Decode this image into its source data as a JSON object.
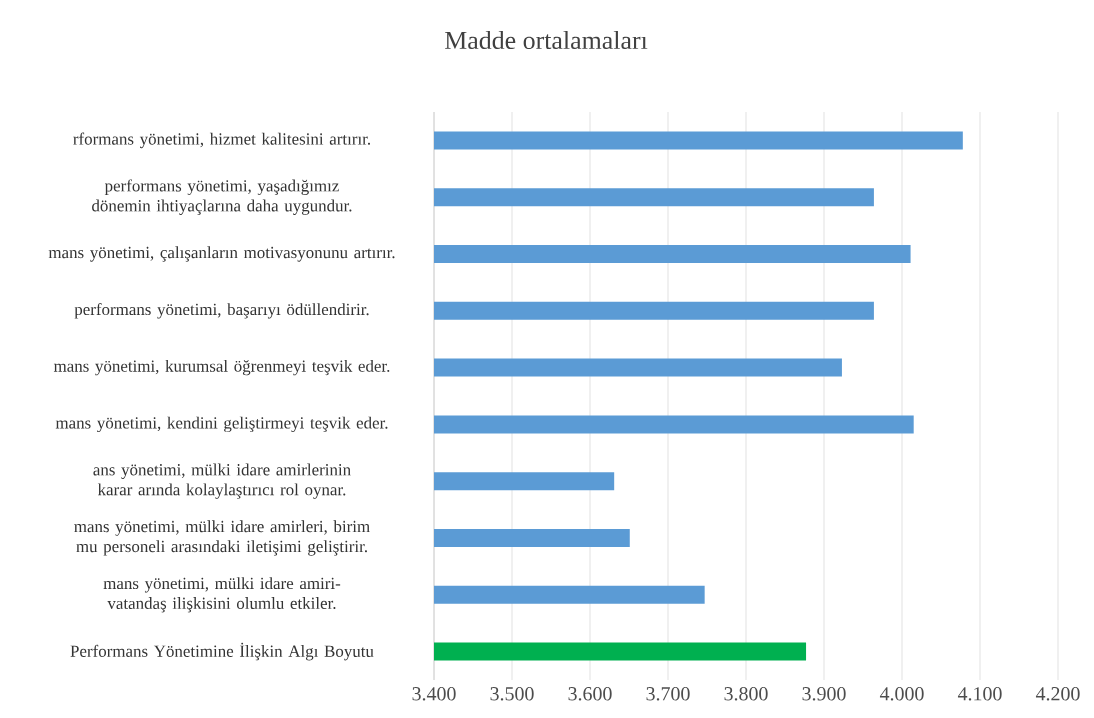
{
  "chart_data": {
    "type": "bar",
    "orientation": "horizontal",
    "title": "Madde ortalamaları",
    "categories": [
      "rformans yönetimi, hizmet kalitesini artırır.",
      "performans yönetimi, yaşadığımız dönemin ihtiyaçlarına daha uygundur.",
      "mans yönetimi, çalışanların motivasyonunu artırır.",
      "performans yönetimi, başarıyı ödüllendirir.",
      "mans yönetimi, kurumsal öğrenmeyi teşvik eder.",
      "mans yönetimi, kendini geliştirmeyi teşvik eder.",
      "ans yönetimi, mülki idare amirlerinin karar arında kolaylaştırıcı rol oynar.",
      "mans yönetimi, mülki idare amirleri, birim mu personeli arasındaki iletişimi geliştirir.",
      "mans yönetimi, mülki idare amiri-vatandaş ilişkisini olumlu etkiler.",
      "Performans Yönetimine İlişkin Algı Boyutu"
    ],
    "values": [
      4.078,
      3.964,
      4.011,
      3.964,
      3.923,
      4.015,
      3.631,
      3.651,
      3.747,
      3.877
    ],
    "colors": [
      "#5b9bd5",
      "#5b9bd5",
      "#5b9bd5",
      "#5b9bd5",
      "#5b9bd5",
      "#5b9bd5",
      "#5b9bd5",
      "#5b9bd5",
      "#5b9bd5",
      "#00b050"
    ],
    "xlim": [
      3.4,
      4.2
    ],
    "xticks": [
      {
        "value": 3.4,
        "label": "3.400"
      },
      {
        "value": 3.5,
        "label": "3.500"
      },
      {
        "value": 3.6,
        "label": "3.600"
      },
      {
        "value": 3.7,
        "label": "3.700"
      },
      {
        "value": 3.8,
        "label": "3.800"
      },
      {
        "value": 3.9,
        "label": "3.900"
      },
      {
        "value": 4.0,
        "label": "4.000"
      },
      {
        "value": 4.1,
        "label": "4.100"
      },
      {
        "value": 4.2,
        "label": "4.200"
      }
    ],
    "grid": "x"
  }
}
